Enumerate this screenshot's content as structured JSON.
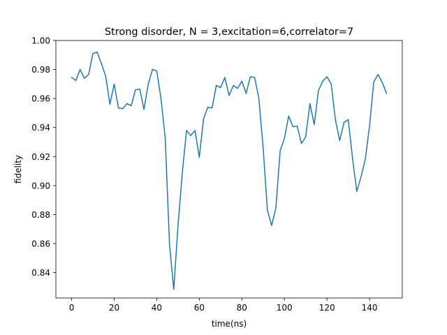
{
  "chart_data": {
    "type": "line",
    "title": "Strong disorder, N =  3,excitation=6,correlator=7",
    "xlabel": "time(ns)",
    "ylabel": "fidelity",
    "xlim": [
      -7.4,
      155.4
    ],
    "ylim": [
      0.8225,
      1.0
    ],
    "xticks": [
      0,
      20,
      40,
      60,
      80,
      100,
      120,
      140
    ],
    "xtick_labels": [
      "0",
      "20",
      "40",
      "60",
      "80",
      "100",
      "120",
      "140"
    ],
    "yticks": [
      0.84,
      0.86,
      0.88,
      0.9,
      0.92,
      0.94,
      0.96,
      0.98,
      1.0
    ],
    "ytick_labels": [
      "0.84",
      "0.86",
      "0.88",
      "0.90",
      "0.92",
      "0.94",
      "0.96",
      "0.98",
      "1.00"
    ],
    "grid": false,
    "series": [
      {
        "color": "#1f77b4",
        "x": [
          0,
          4,
          2,
          6,
          8,
          10,
          12,
          14,
          16,
          18,
          20,
          22,
          24,
          26,
          28,
          30,
          32,
          34,
          36,
          38,
          40,
          42,
          44,
          46,
          48,
          50,
          52,
          54,
          56,
          58,
          60,
          62,
          64,
          66,
          68,
          70,
          72,
          74,
          76,
          78,
          80,
          82,
          84,
          86,
          88,
          90,
          92,
          94,
          96,
          98,
          100,
          102,
          104,
          106,
          108,
          110,
          112,
          114,
          116,
          118,
          120,
          122,
          124,
          126,
          128,
          130,
          132,
          134,
          136,
          138,
          140,
          142,
          144,
          146,
          148
        ],
        "y": [
          0.9745,
          0.98,
          0.9725,
          0.974,
          0.9765,
          0.991,
          0.992,
          0.984,
          0.9755,
          0.956,
          0.97,
          0.9535,
          0.953,
          0.9565,
          0.955,
          0.966,
          0.9665,
          0.9525,
          0.97,
          0.98,
          0.979,
          0.96,
          0.9325,
          0.8595,
          0.8285,
          0.8725,
          0.9085,
          0.938,
          0.9345,
          0.938,
          0.9195,
          0.946,
          0.954,
          0.9535,
          0.969,
          0.9675,
          0.9745,
          0.962,
          0.969,
          0.967,
          0.972,
          0.9635,
          0.975,
          0.9745,
          0.96,
          0.926,
          0.883,
          0.8725,
          0.8845,
          0.924,
          0.9325,
          0.948,
          0.9405,
          0.941,
          0.929,
          0.9335,
          0.9565,
          0.942,
          0.9655,
          0.972,
          0.975,
          0.97,
          0.945,
          0.931,
          0.9435,
          0.9455,
          0.919,
          0.896,
          0.906,
          0.918,
          0.941,
          0.9715,
          0.9765,
          0.971,
          0.9635
        ]
      }
    ]
  }
}
